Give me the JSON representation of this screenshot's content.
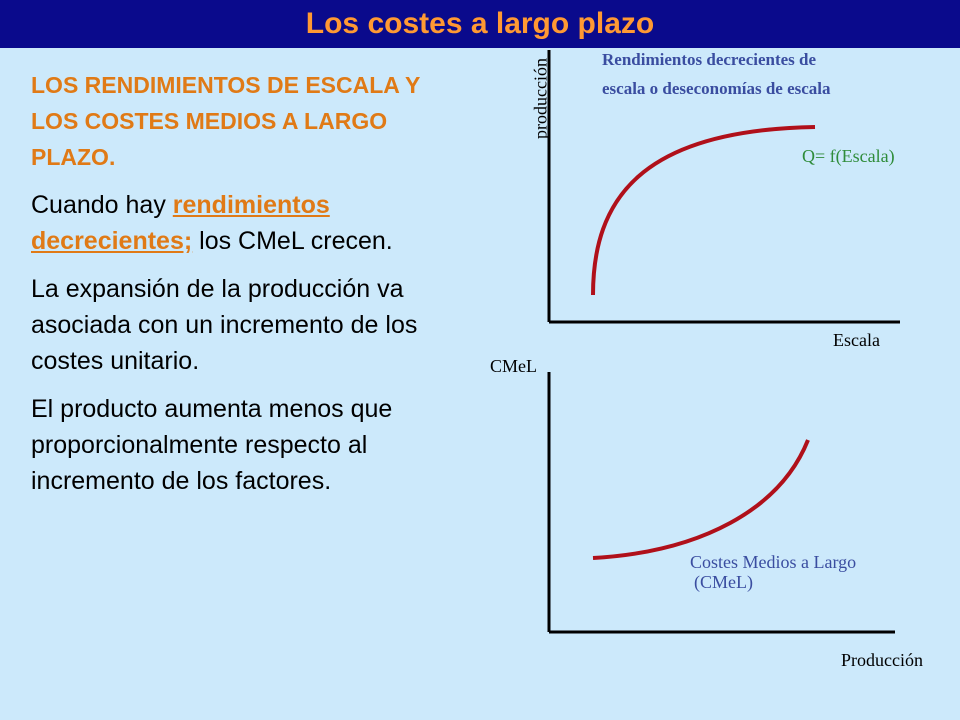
{
  "header": {
    "title": "Los costes a largo plazo"
  },
  "text": {
    "heading": "LOS RENDIMIENTOS DE ESCALA Y LOS COSTES MEDIOS A LARGO PLAZO.",
    "p1_before": "Cuando hay ",
    "p1_link": "rendimientos decrecientes;",
    "p1_after": " los CMeL crecen.",
    "p2": "La expansión de la producción va asociada con un incremento de los costes unitario.",
    "p3": "El producto aumenta menos que proporcionalmente respecto al incremento de los factores."
  },
  "top_graph": {
    "y_label": "producción",
    "x_label": "Escala",
    "title_line1": "Rendimientos decrecientes de",
    "title_line2": "escala o deseconomías de escala",
    "curve_label": "Q= f(Escala)"
  },
  "bottom_graph": {
    "y_label": "CMeL",
    "x_label": "Producción",
    "curve_label_line1": "Costes Medios a Largo",
    "curve_label_line2": "(CMeL)"
  },
  "colors": {
    "header_bg": "#0a0a8c",
    "accent_orange": "#e07a16",
    "curve_red": "#b0101a",
    "label_blue": "#3a4da0",
    "label_green": "#2f8c3a"
  }
}
